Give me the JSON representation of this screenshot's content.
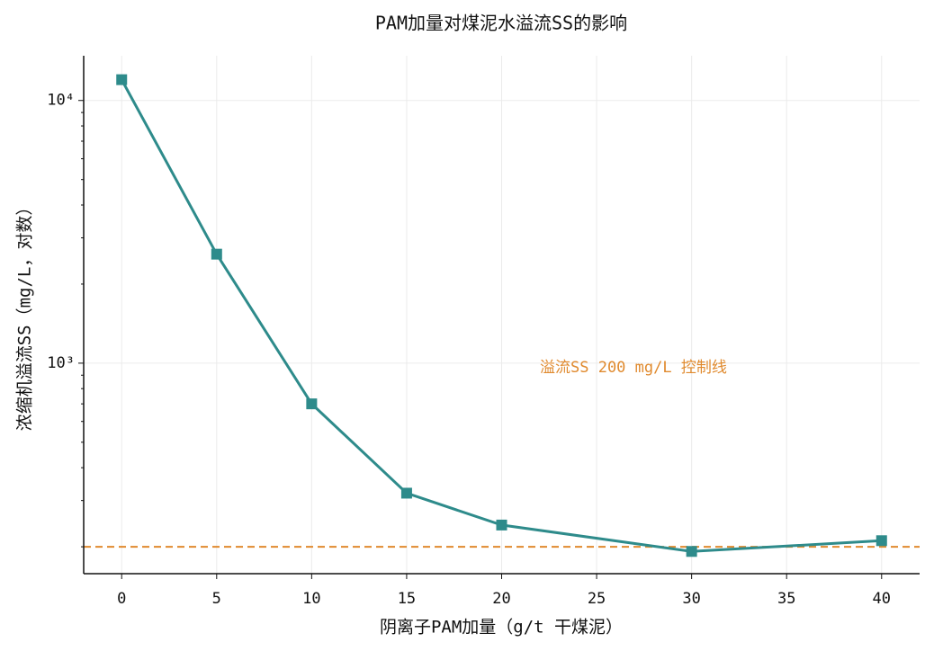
{
  "chart_data": {
    "type": "line",
    "title": "PAM加量对煤泥水溢流SS的影响",
    "x_label": "阴离子PAM加量（g/t 干煤泥）",
    "y_label": "浓缩机溢流SS（mg/L，对数）",
    "x": [
      0,
      5,
      10,
      15,
      20,
      30,
      40
    ],
    "series": [
      {
        "name": "溢流SS",
        "color": "#2e8b8b",
        "values": [
          12000,
          2600,
          700,
          320,
          242,
          192,
          211
        ]
      }
    ],
    "xlim": [
      -2,
      42
    ],
    "xticks": [
      0,
      5,
      10,
      15,
      20,
      25,
      30,
      35,
      40
    ],
    "ylim": [
      158,
      14800
    ],
    "y_log": true,
    "yticks": [
      {
        "value": 1000,
        "label": "10³"
      },
      {
        "value": 10000,
        "label": "10⁴"
      }
    ],
    "y_minor_ticks": [
      200,
      300,
      400,
      500,
      600,
      700,
      800,
      900,
      2000,
      3000,
      4000,
      5000,
      6000,
      7000,
      8000,
      9000
    ],
    "grid": true,
    "hline": {
      "value": 200,
      "color": "#e08a2e",
      "label": "溢流SS 200 mg/L 控制线"
    }
  }
}
